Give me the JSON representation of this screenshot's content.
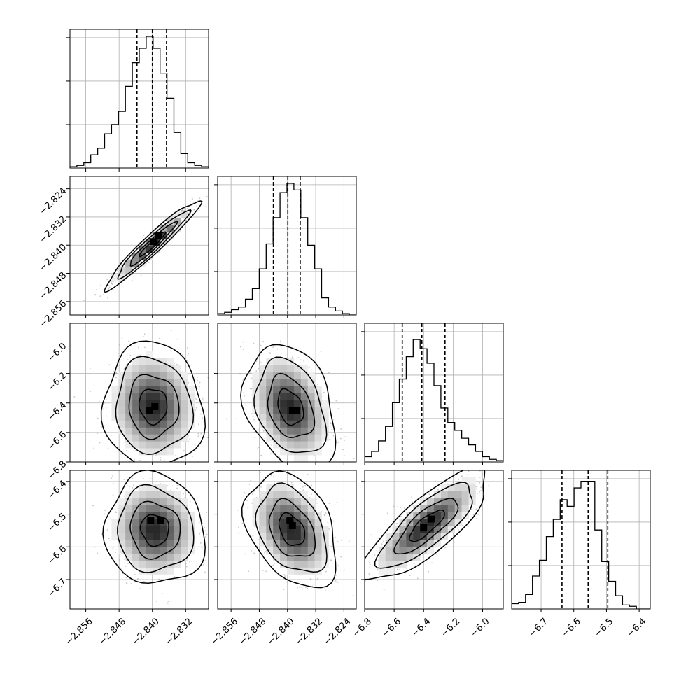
{
  "chart_data": {
    "type": "corner",
    "grid": true,
    "colors": {
      "hist": "#000000",
      "contour": "#000000",
      "scatter": "#9a9a9a",
      "density_dark": "#000000",
      "density_light": "#f2f2f2"
    },
    "parameters": [
      {
        "range": [
          -2.8598,
          -2.8265
        ],
        "ticks": [
          -2.856,
          -2.848,
          -2.84,
          -2.832
        ],
        "tick_labels": [
          "−2.856",
          "−2.848",
          "−2.840",
          "−2.832"
        ],
        "quantiles": [
          -2.8437,
          -2.84,
          -2.8366
        ]
      },
      {
        "range": [
          -2.8598,
          -2.8205
        ],
        "ticks": [
          -2.856,
          -2.848,
          -2.84,
          -2.832,
          -2.824
        ],
        "tick_labels": [
          "−2.856",
          "−2.848",
          "−2.840",
          "−2.832",
          "−2.824"
        ],
        "quantiles": [
          -2.844,
          -2.8399,
          -2.8364
        ]
      },
      {
        "range": [
          -6.8,
          -5.86
        ],
        "ticks": [
          -6.8,
          -6.6,
          -6.4,
          -6.2,
          -6.0
        ],
        "tick_labels": [
          "−6.8",
          "−6.6",
          "−6.4",
          "−6.2",
          "−6.0"
        ],
        "quantiles": [
          -6.545,
          -6.412,
          -6.255
        ]
      },
      {
        "range": [
          -6.79,
          -6.366
        ],
        "ticks": [
          -6.7,
          -6.6,
          -6.5,
          -6.4
        ],
        "tick_labels": [
          "−6.7",
          "−6.6",
          "−6.5",
          "−6.4"
        ],
        "quantiles": [
          -6.636,
          -6.556,
          -6.496
        ]
      }
    ],
    "histograms": [
      {
        "param": 0,
        "counts": [
          0.01,
          0.02,
          0.04,
          0.1,
          0.15,
          0.26,
          0.33,
          0.43,
          0.62,
          0.8,
          0.91,
          1.0,
          0.91,
          0.72,
          0.53,
          0.27,
          0.11,
          0.04,
          0.02,
          0.01
        ]
      },
      {
        "param": 1,
        "counts": [
          0.01,
          0.02,
          0.04,
          0.06,
          0.12,
          0.2,
          0.35,
          0.54,
          0.74,
          0.93,
          1.0,
          0.95,
          0.74,
          0.53,
          0.35,
          0.13,
          0.06,
          0.03,
          0.01,
          0.0
        ]
      },
      {
        "param": 2,
        "counts": [
          0.04,
          0.08,
          0.16,
          0.27,
          0.45,
          0.63,
          0.8,
          0.93,
          0.86,
          0.75,
          0.58,
          0.41,
          0.3,
          0.24,
          0.18,
          0.13,
          0.08,
          0.04,
          0.02,
          0.01
        ]
      },
      {
        "param": 3,
        "counts": [
          0.04,
          0.05,
          0.11,
          0.25,
          0.37,
          0.55,
          0.68,
          0.83,
          0.78,
          0.92,
          0.97,
          0.97,
          0.6,
          0.36,
          0.21,
          0.1,
          0.03,
          0.02,
          0.0,
          0.0
        ]
      }
    ],
    "pairs": [
      {
        "x": 0,
        "y": 1,
        "center": [
          -2.84,
          -2.8398
        ],
        "sigma": [
          0.0045,
          0.005
        ],
        "rho": 0.96,
        "peaks": [
          [
            -2.8398,
            -2.839
          ],
          [
            -2.8385,
            -2.8372
          ]
        ]
      },
      {
        "x": 0,
        "y": 2,
        "center": [
          -2.8398,
          -6.42
        ],
        "sigma": [
          0.0048,
          0.17
        ],
        "rho": -0.05,
        "peaks": [
          [
            -2.8408,
            -6.45
          ],
          [
            -2.8394,
            -6.425
          ]
        ]
      },
      {
        "x": 1,
        "y": 2,
        "center": [
          -2.8392,
          -6.43
        ],
        "sigma": [
          0.0052,
          0.17
        ],
        "rho": -0.3,
        "peaks": [
          [
            -2.8386,
            -6.45
          ],
          [
            -2.8374,
            -6.45
          ]
        ]
      },
      {
        "x": 0,
        "y": 3,
        "center": [
          -2.8394,
          -6.548
        ],
        "sigma": [
          0.0048,
          0.068
        ],
        "rho": -0.05,
        "peaks": [
          [
            -2.8404,
            -6.52
          ],
          [
            -2.838,
            -6.52
          ]
        ]
      },
      {
        "x": 1,
        "y": 3,
        "center": [
          -2.8388,
          -6.548
        ],
        "sigma": [
          0.0052,
          0.07
        ],
        "rho": -0.35,
        "peaks": [
          [
            -2.8393,
            -6.52
          ],
          [
            -2.8386,
            -6.535
          ]
        ]
      },
      {
        "x": 2,
        "y": 3,
        "center": [
          -6.38,
          -6.535
        ],
        "sigma": [
          0.17,
          0.068
        ],
        "rho": 0.8,
        "peaks": [
          [
            -6.345,
            -6.515
          ],
          [
            -6.4,
            -6.54
          ]
        ]
      }
    ]
  }
}
